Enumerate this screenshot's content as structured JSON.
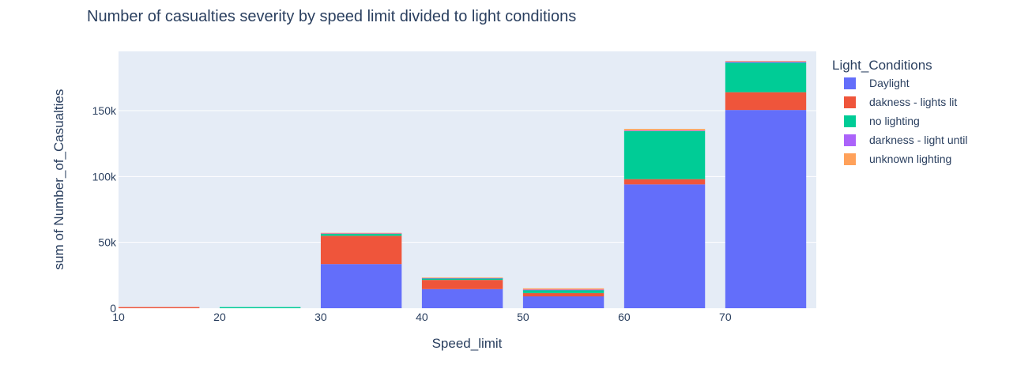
{
  "chart_data": {
    "type": "bar",
    "barmode": "stack",
    "title": "Number of casualties severity by speed limit divided to light conditions",
    "xlabel": "Speed_limit",
    "ylabel": "sum of Number_of_Casualties",
    "xlim": [
      10,
      79
    ],
    "ylim": [
      0,
      195000
    ],
    "xticks": [
      10,
      20,
      30,
      40,
      50,
      60,
      70
    ],
    "yticks": [
      0,
      50000,
      100000,
      150000
    ],
    "ytick_labels": [
      "0",
      "50k",
      "100k",
      "150k"
    ],
    "grid": true,
    "legend_title": "Light_Conditions",
    "legend_position": "right",
    "x": [
      14,
      24,
      34,
      44,
      54,
      64,
      74
    ],
    "series": [
      {
        "name": "Daylight",
        "color": "#636efa",
        "values": [
          0,
          0,
          33500,
          14500,
          9000,
          94000,
          150500
        ]
      },
      {
        "name": "dakness - lights lit",
        "color": "#ef553b",
        "values": [
          900,
          0,
          21500,
          7000,
          2500,
          4000,
          13500
        ]
      },
      {
        "name": "no lighting",
        "color": "#00cc96",
        "values": [
          0,
          900,
          1700,
          1300,
          2400,
          36500,
          22500
        ]
      },
      {
        "name": "darkness - light until",
        "color": "#ab63fa",
        "values": [
          0,
          0,
          200,
          200,
          200,
          400,
          700
        ]
      },
      {
        "name": "unknown lighting",
        "color": "#ffa15a",
        "values": [
          0,
          0,
          300,
          300,
          1000,
          1200,
          500
        ]
      }
    ]
  }
}
